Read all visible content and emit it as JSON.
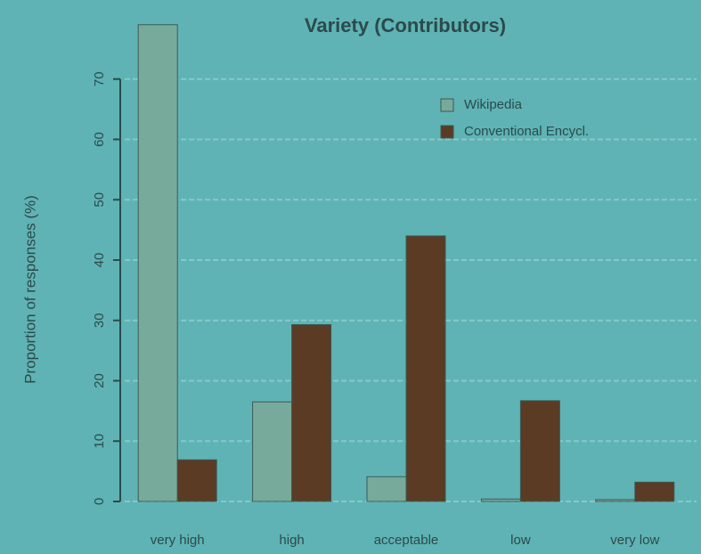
{
  "chart_data": {
    "type": "bar",
    "title": "Variety (Contributors)",
    "ylabel": "Proportion of responses (%)",
    "categories": [
      "very high",
      "high",
      "acceptable",
      "low",
      "very low"
    ],
    "series": [
      {
        "name": "Wikipedia",
        "color": "#78aa9c",
        "values": [
          79,
          16.5,
          4.1,
          0.4,
          0.3
        ]
      },
      {
        "name": "Conventional Encycl.",
        "color": "#5b3b24",
        "values": [
          6.9,
          29.3,
          44,
          16.7,
          3.2
        ]
      }
    ],
    "ylim": [
      0,
      80
    ],
    "yticks": [
      0,
      10,
      20,
      30,
      40,
      50,
      60,
      70
    ],
    "grid": true,
    "legend": "top right"
  }
}
